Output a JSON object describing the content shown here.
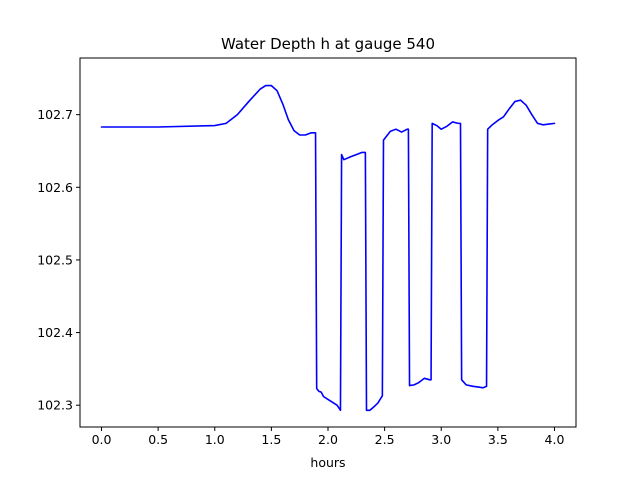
{
  "chart_data": {
    "type": "line",
    "title": "Water Depth h at gauge 540",
    "xlabel": "hours",
    "ylabel": "",
    "xlim": [
      -0.19,
      4.19
    ],
    "ylim": [
      102.27,
      102.778
    ],
    "grid": false,
    "legend": "none",
    "x_ticks": [
      {
        "value": 0.0,
        "label": "0.0"
      },
      {
        "value": 0.5,
        "label": "0.5"
      },
      {
        "value": 1.0,
        "label": "1.0"
      },
      {
        "value": 1.5,
        "label": "1.5"
      },
      {
        "value": 2.0,
        "label": "2.0"
      },
      {
        "value": 2.5,
        "label": "2.5"
      },
      {
        "value": 3.0,
        "label": "3.0"
      },
      {
        "value": 3.5,
        "label": "3.5"
      },
      {
        "value": 4.0,
        "label": "4.0"
      }
    ],
    "y_ticks": [
      {
        "value": 102.3,
        "label": "102.3"
      },
      {
        "value": 102.4,
        "label": "102.4"
      },
      {
        "value": 102.5,
        "label": "102.5"
      },
      {
        "value": 102.6,
        "label": "102.6"
      },
      {
        "value": 102.7,
        "label": "102.7"
      }
    ],
    "series": [
      {
        "color": "#0000ff",
        "x": [
          0.0,
          0.5,
          1.0,
          1.1,
          1.2,
          1.3,
          1.4,
          1.45,
          1.5,
          1.55,
          1.6,
          1.65,
          1.7,
          1.75,
          1.8,
          1.85,
          1.89,
          1.9,
          1.92,
          1.94,
          1.96,
          2.0,
          2.04,
          2.08,
          2.11,
          2.12,
          2.14,
          2.2,
          2.25,
          2.3,
          2.33,
          2.34,
          2.37,
          2.4,
          2.44,
          2.48,
          2.49,
          2.55,
          2.6,
          2.65,
          2.7,
          2.71,
          2.72,
          2.76,
          2.8,
          2.85,
          2.9,
          2.91,
          2.92,
          2.96,
          3.0,
          3.05,
          3.1,
          3.15,
          3.17,
          3.18,
          3.22,
          3.28,
          3.33,
          3.37,
          3.4,
          3.41,
          3.45,
          3.5,
          3.55,
          3.6,
          3.65,
          3.7,
          3.75,
          3.8,
          3.85,
          3.9,
          3.95,
          4.0
        ],
        "y": [
          102.683,
          102.683,
          102.685,
          102.688,
          102.7,
          102.718,
          102.735,
          102.74,
          102.74,
          102.733,
          102.715,
          102.693,
          102.678,
          102.672,
          102.672,
          102.675,
          102.675,
          102.323,
          102.319,
          102.318,
          102.312,
          102.308,
          102.304,
          102.3,
          102.293,
          102.645,
          102.638,
          102.642,
          102.645,
          102.648,
          102.648,
          102.293,
          102.293,
          102.297,
          102.303,
          102.313,
          102.665,
          102.677,
          102.68,
          102.676,
          102.68,
          102.68,
          102.327,
          102.328,
          102.331,
          102.337,
          102.335,
          102.335,
          102.688,
          102.685,
          102.68,
          102.684,
          102.69,
          102.688,
          102.688,
          102.335,
          102.328,
          102.326,
          102.325,
          102.324,
          102.326,
          102.68,
          102.686,
          102.692,
          102.697,
          102.708,
          102.718,
          102.72,
          102.713,
          102.7,
          102.688,
          102.686,
          102.687,
          102.688
        ]
      }
    ]
  }
}
